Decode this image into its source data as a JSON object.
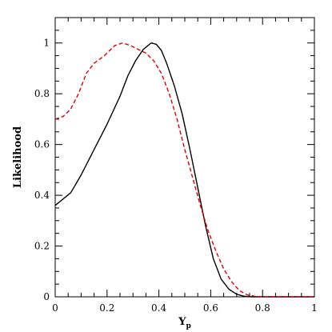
{
  "chart_data": {
    "type": "line",
    "xlabel": "Y",
    "xlabel_subscript": "p",
    "ylabel": "Likelihood",
    "xlim": [
      0,
      1
    ],
    "ylim": [
      0,
      1.1
    ],
    "xticks": [
      "0",
      "0.2",
      "0.4",
      "0.6",
      "0.8",
      "1"
    ],
    "yticks": [
      "0",
      "0.2",
      "0.4",
      "0.6",
      "0.8",
      "1"
    ],
    "grid": false,
    "legend": "none",
    "series": [
      {
        "style": "solid",
        "color": "#000000",
        "x": [
          0,
          0.06,
          0.1,
          0.15,
          0.2,
          0.25,
          0.28,
          0.31,
          0.34,
          0.37,
          0.39,
          0.41,
          0.43,
          0.46,
          0.49,
          0.52,
          0.55,
          0.58,
          0.61,
          0.64,
          0.67,
          0.7,
          0.73,
          0.76,
          0.8,
          0.85,
          0.9,
          0.95,
          1.0
        ],
        "y": [
          0.36,
          0.41,
          0.48,
          0.58,
          0.68,
          0.79,
          0.87,
          0.93,
          0.975,
          1.0,
          0.995,
          0.97,
          0.92,
          0.83,
          0.72,
          0.58,
          0.43,
          0.28,
          0.15,
          0.07,
          0.03,
          0.01,
          0.002,
          0,
          0,
          0,
          0,
          0,
          0
        ]
      },
      {
        "style": "dashed",
        "color": "#e00000",
        "x": [
          0,
          0.03,
          0.06,
          0.09,
          0.12,
          0.15,
          0.19,
          0.23,
          0.26,
          0.29,
          0.32,
          0.35,
          0.38,
          0.41,
          0.44,
          0.47,
          0.5,
          0.53,
          0.56,
          0.59,
          0.62,
          0.65,
          0.68,
          0.71,
          0.74,
          0.77,
          0.8,
          0.85,
          0.9,
          0.95,
          1.0
        ],
        "y": [
          0.7,
          0.71,
          0.74,
          0.8,
          0.88,
          0.92,
          0.95,
          0.99,
          1.0,
          0.99,
          0.975,
          0.96,
          0.93,
          0.88,
          0.8,
          0.7,
          0.58,
          0.47,
          0.36,
          0.26,
          0.18,
          0.11,
          0.06,
          0.025,
          0.008,
          0.002,
          0,
          0,
          0,
          0,
          0
        ]
      }
    ]
  }
}
